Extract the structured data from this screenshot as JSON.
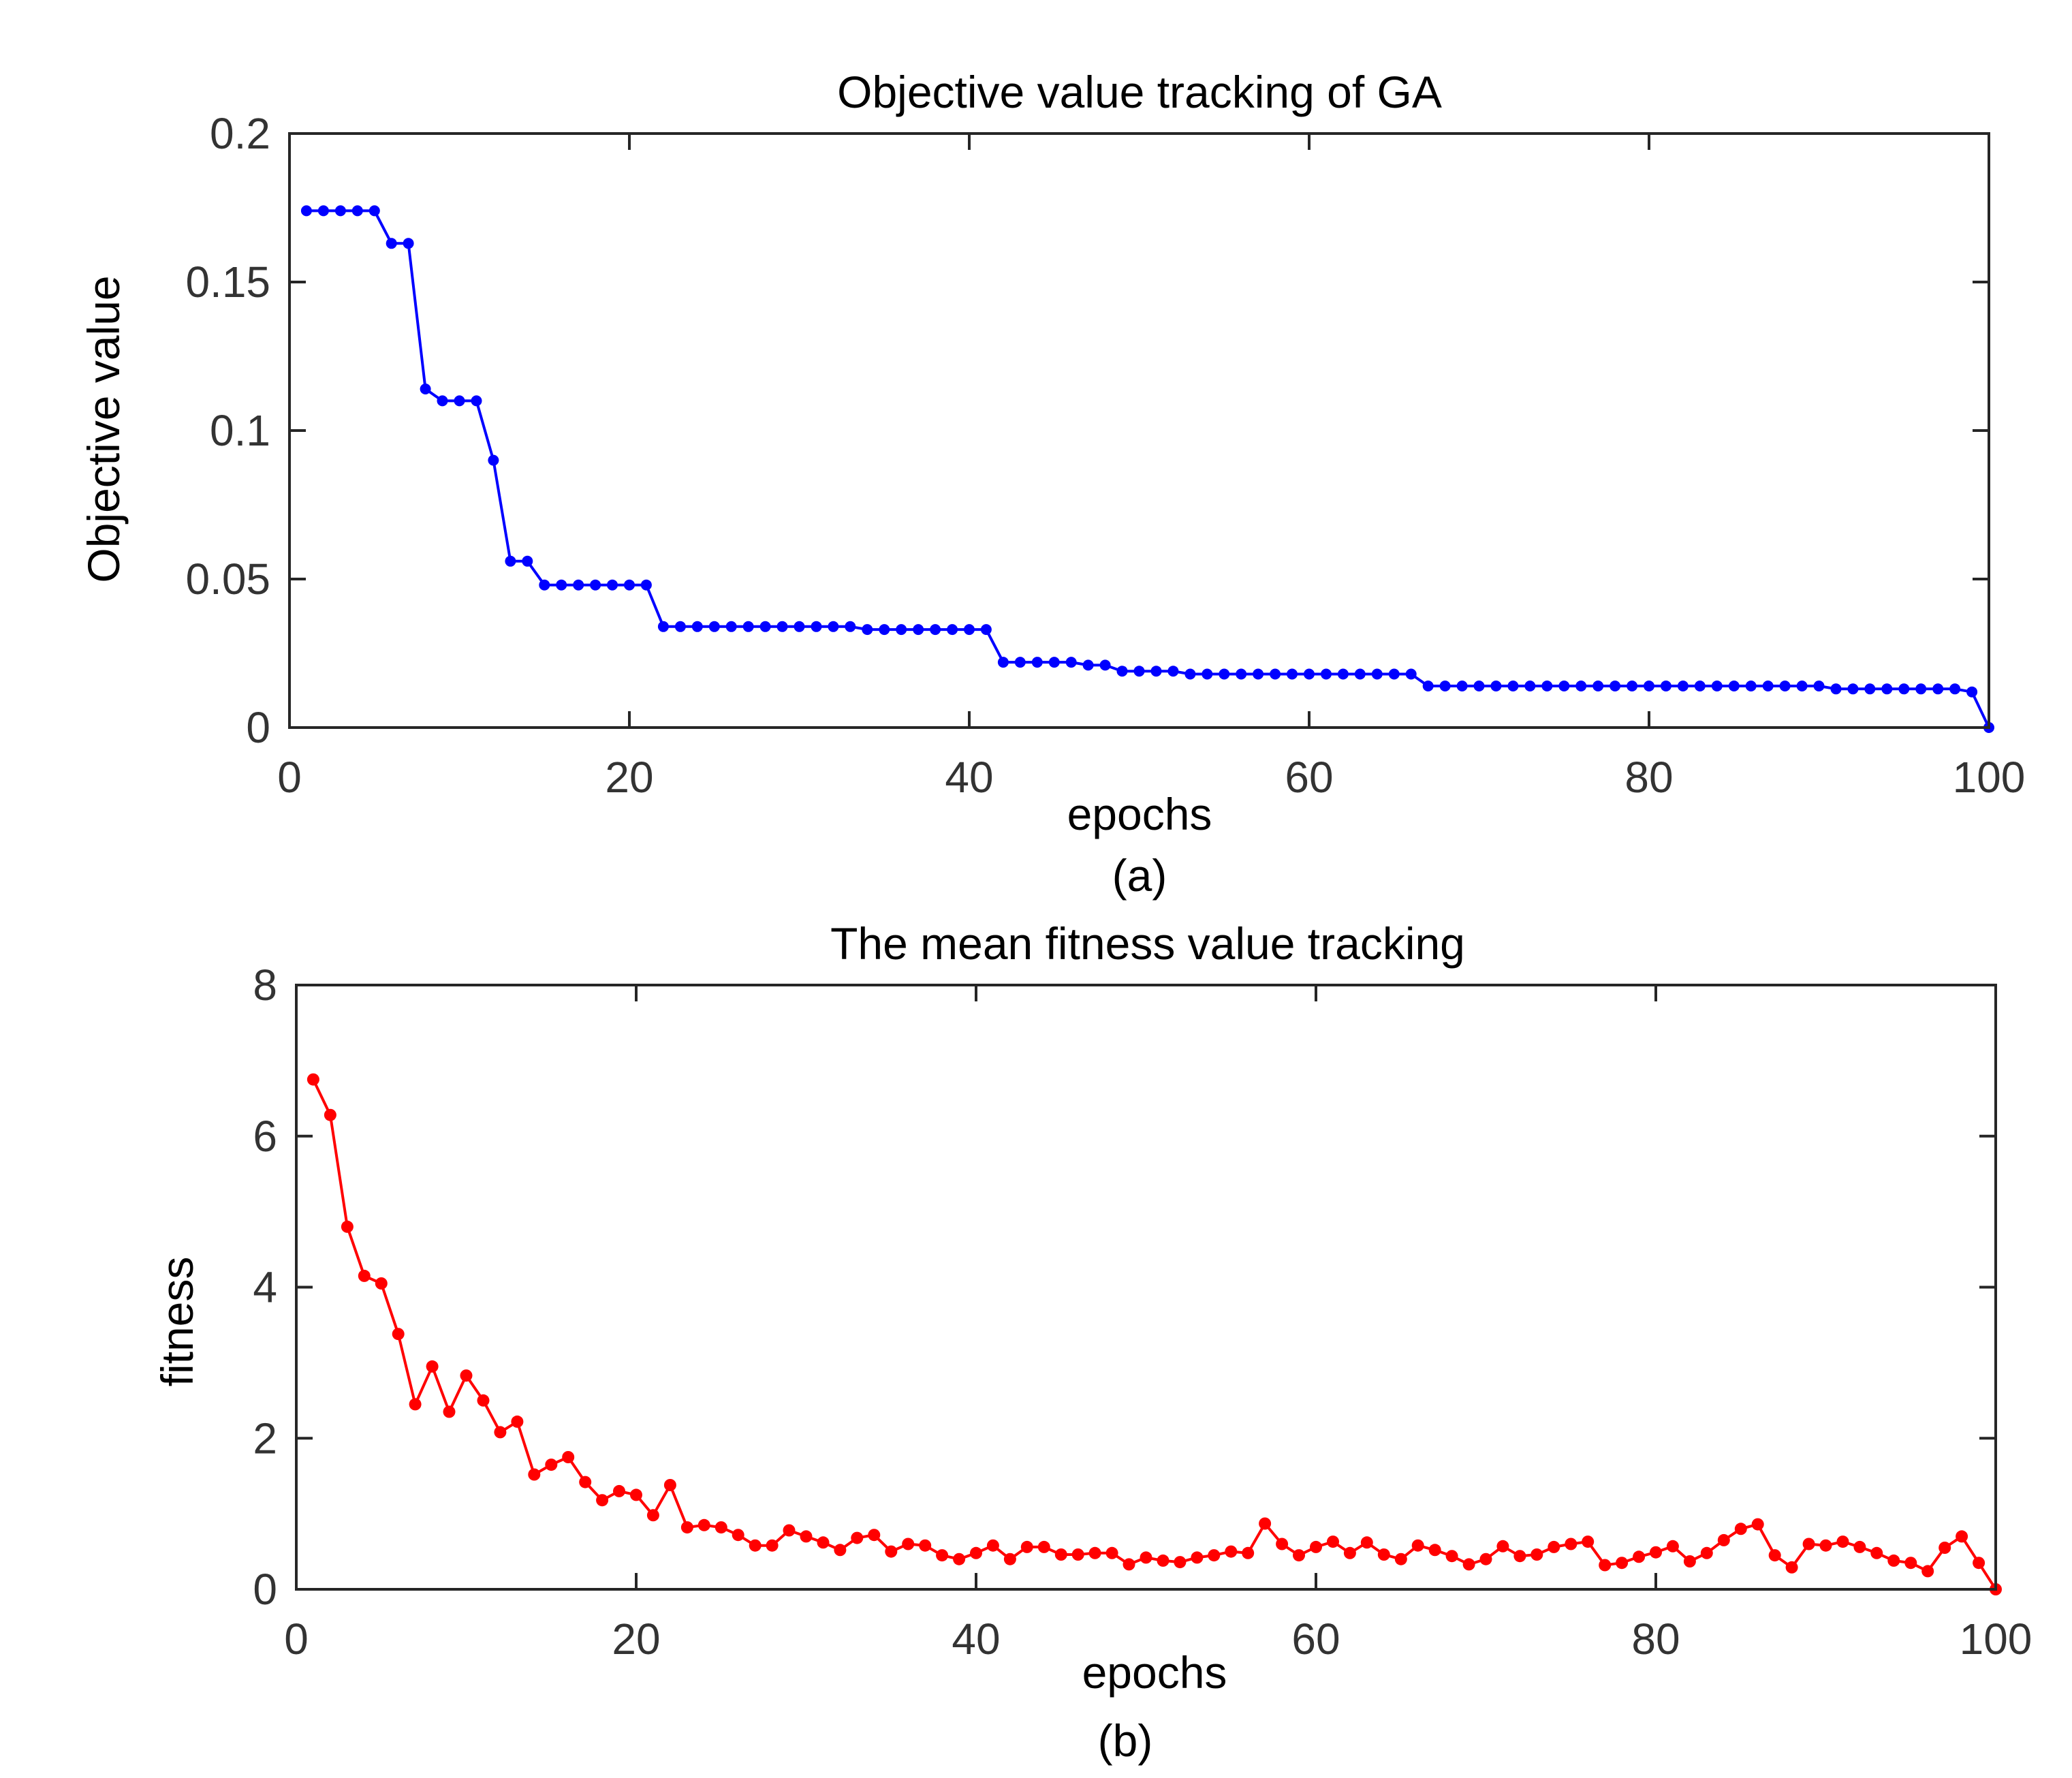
{
  "chart_data": [
    {
      "type": "line",
      "title": "Objective value tracking of GA",
      "xlabel": "epochs",
      "ylabel": "Objective value",
      "caption": "(a)",
      "xlim": [
        0,
        100
      ],
      "ylim": [
        0,
        0.2
      ],
      "xticks": [
        0,
        20,
        40,
        60,
        80,
        100
      ],
      "xtick_labels": [
        "0",
        "20",
        "40",
        "60",
        "80",
        "100"
      ],
      "yticks": [
        0,
        0.05,
        0.1,
        0.15,
        0.2
      ],
      "ytick_labels": [
        "0",
        "0.05",
        "0.1",
        "0.15",
        "0.2"
      ],
      "grid": false,
      "series": [
        {
          "name": "objective",
          "color": "#0000ff",
          "x": [
            1,
            2,
            3,
            4,
            5,
            6,
            7,
            8,
            9,
            10,
            11,
            12,
            13,
            14,
            15,
            16,
            17,
            18,
            19,
            20,
            21,
            22,
            23,
            24,
            25,
            26,
            27,
            28,
            29,
            30,
            31,
            32,
            33,
            34,
            35,
            36,
            37,
            38,
            39,
            40,
            41,
            42,
            43,
            44,
            45,
            46,
            47,
            48,
            49,
            50,
            51,
            52,
            53,
            54,
            55,
            56,
            57,
            58,
            59,
            60,
            61,
            62,
            63,
            64,
            65,
            66,
            67,
            68,
            69,
            70,
            71,
            72,
            73,
            74,
            75,
            76,
            77,
            78,
            79,
            80,
            81,
            82,
            83,
            84,
            85,
            86,
            87,
            88,
            89,
            90,
            91,
            92,
            93,
            94,
            95,
            96,
            97,
            98,
            99,
            100
          ],
          "values": [
            0.174,
            0.174,
            0.174,
            0.174,
            0.174,
            0.163,
            0.163,
            0.114,
            0.11,
            0.11,
            0.11,
            0.09,
            0.056,
            0.056,
            0.048,
            0.048,
            0.048,
            0.048,
            0.048,
            0.048,
            0.048,
            0.034,
            0.034,
            0.034,
            0.034,
            0.034,
            0.034,
            0.034,
            0.034,
            0.034,
            0.034,
            0.034,
            0.034,
            0.033,
            0.033,
            0.033,
            0.033,
            0.033,
            0.033,
            0.033,
            0.033,
            0.022,
            0.022,
            0.022,
            0.022,
            0.022,
            0.021,
            0.021,
            0.019,
            0.019,
            0.019,
            0.019,
            0.018,
            0.018,
            0.018,
            0.018,
            0.018,
            0.018,
            0.018,
            0.018,
            0.018,
            0.018,
            0.018,
            0.018,
            0.018,
            0.018,
            0.014,
            0.014,
            0.014,
            0.014,
            0.014,
            0.014,
            0.014,
            0.014,
            0.014,
            0.014,
            0.014,
            0.014,
            0.014,
            0.014,
            0.014,
            0.014,
            0.014,
            0.014,
            0.014,
            0.014,
            0.014,
            0.014,
            0.014,
            0.014,
            0.013,
            0.013,
            0.013,
            0.013,
            0.013,
            0.013,
            0.013,
            0.013,
            0.012,
            0.0
          ]
        }
      ]
    },
    {
      "type": "line",
      "title": "The mean fitness value tracking",
      "xlabel": "epochs",
      "ylabel": "fitness",
      "caption": "(b)",
      "xlim": [
        0,
        100
      ],
      "ylim": [
        0,
        8
      ],
      "xticks": [
        0,
        20,
        40,
        60,
        80,
        100
      ],
      "xtick_labels": [
        "0",
        "20",
        "40",
        "60",
        "80",
        "100"
      ],
      "yticks": [
        0,
        2,
        4,
        6,
        8
      ],
      "ytick_labels": [
        "0",
        "2",
        "4",
        "6",
        "8"
      ],
      "grid": false,
      "series": [
        {
          "name": "mean fitness",
          "color": "#ff0000",
          "x": [
            1,
            2,
            3,
            4,
            5,
            6,
            7,
            8,
            9,
            10,
            11,
            12,
            13,
            14,
            15,
            16,
            17,
            18,
            19,
            20,
            21,
            22,
            23,
            24,
            25,
            26,
            27,
            28,
            29,
            30,
            31,
            32,
            33,
            34,
            35,
            36,
            37,
            38,
            39,
            40,
            41,
            42,
            43,
            44,
            45,
            46,
            47,
            48,
            49,
            50,
            51,
            52,
            53,
            54,
            55,
            56,
            57,
            58,
            59,
            60,
            61,
            62,
            63,
            64,
            65,
            66,
            67,
            68,
            69,
            70,
            71,
            72,
            73,
            74,
            75,
            76,
            77,
            78,
            79,
            80,
            81,
            82,
            83,
            84,
            85,
            86,
            87,
            88,
            89,
            90,
            91,
            92,
            93,
            94,
            95,
            96,
            97,
            98,
            99,
            100
          ],
          "values": [
            6.75,
            6.28,
            4.8,
            4.15,
            4.05,
            3.38,
            2.45,
            2.95,
            2.35,
            2.83,
            2.5,
            2.08,
            2.22,
            1.52,
            1.65,
            1.75,
            1.42,
            1.18,
            1.3,
            1.25,
            0.98,
            1.38,
            0.82,
            0.85,
            0.82,
            0.72,
            0.58,
            0.58,
            0.78,
            0.7,
            0.62,
            0.52,
            0.68,
            0.72,
            0.5,
            0.6,
            0.58,
            0.45,
            0.4,
            0.48,
            0.58,
            0.4,
            0.56,
            0.56,
            0.46,
            0.46,
            0.48,
            0.48,
            0.33,
            0.42,
            0.38,
            0.36,
            0.42,
            0.45,
            0.5,
            0.48,
            0.87,
            0.6,
            0.45,
            0.56,
            0.63,
            0.48,
            0.62,
            0.46,
            0.4,
            0.58,
            0.52,
            0.44,
            0.33,
            0.4,
            0.57,
            0.44,
            0.46,
            0.56,
            0.6,
            0.63,
            0.32,
            0.35,
            0.43,
            0.49,
            0.57,
            0.37,
            0.48,
            0.65,
            0.8,
            0.86,
            0.45,
            0.29,
            0.6,
            0.58,
            0.63,
            0.56,
            0.48,
            0.38,
            0.35,
            0.24,
            0.55,
            0.7,
            0.35,
            0.0
          ]
        }
      ]
    }
  ]
}
